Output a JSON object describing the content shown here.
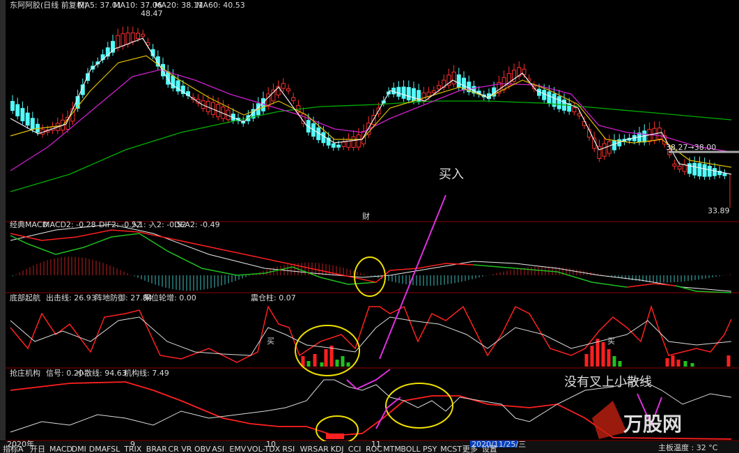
{
  "main": {
    "title": "东阿阿胶(日线 前复权)",
    "ma": [
      "MA5: 37.01",
      "MA10: 37.06",
      "MA20: 38.11",
      "MA60: 40.53"
    ],
    "high": "48.47",
    "mid": "38.27→38.00",
    "low": "33.89",
    "mark": "财",
    "note": "买入"
  },
  "macd": {
    "name": "经典MACD",
    "items": [
      "MACD2: -0.28",
      "DIF2: -0.52",
      "入1: -",
      "入2: -0.52",
      "DEA2: -0.49"
    ]
  },
  "bottom_start": {
    "name": "底部起航",
    "items": [
      "出击线: 26.93",
      "阵地防御: 27.84",
      "果位轮增: 0.00",
      "震仓柱: 0.07"
    ],
    "buy": "买"
  },
  "banker": {
    "name": "抢庄机构",
    "items": [
      "信号: 0.20",
      "小散线: 94.63",
      "机构线: 7.49"
    ],
    "note": "没有叉上小散线"
  },
  "axis": {
    "dates": [
      "2020年",
      "9",
      "10",
      "11"
    ],
    "cursor": "2020/11/25/三"
  },
  "toolbar": {
    "tabs": [
      "指标A",
      "开日",
      "MACD",
      "DMI",
      "DMA",
      "FSL",
      "TRIX",
      "BRAR",
      "CR",
      "VR",
      "OBV",
      "ASI",
      "EMV",
      "VOL-TDX",
      "RSI",
      "WR",
      "SAR",
      "KDJ",
      "CCI",
      "ROC",
      "MTM",
      "BOLL",
      "PSY",
      "MCST",
      "更多",
      "设置"
    ],
    "status": "主板温度 : 32 °C"
  },
  "watermark": "万股网"
}
